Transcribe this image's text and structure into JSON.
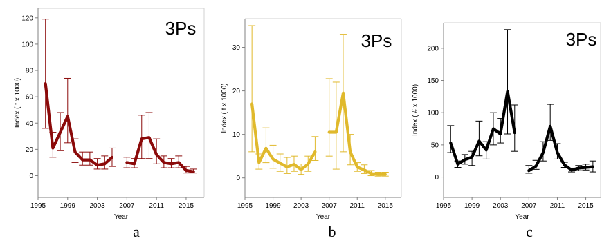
{
  "chart_data": [
    {
      "type": "line",
      "panel_label": "a",
      "region": "3Ps",
      "xlabel": "Year",
      "ylabel": "Index ( t x 1000)",
      "xlim": [
        1995,
        2016.5
      ],
      "ylim": [
        -5,
        122
      ],
      "xticks": [
        1995,
        1999,
        2003,
        2007,
        2011,
        2015
      ],
      "yticks": [
        0,
        20,
        40,
        60,
        80,
        100,
        120
      ],
      "color": "#8b0a0a",
      "grid": false,
      "segments": [
        {
          "x": [
            1996,
            1997,
            1998,
            1999,
            2000,
            2001,
            2002,
            2003,
            2004,
            2005
          ],
          "y": [
            70,
            21,
            33,
            45,
            18,
            12,
            12,
            8,
            9,
            14
          ],
          "lower": [
            36,
            14,
            19,
            25,
            10,
            8,
            8,
            5,
            5,
            7
          ],
          "upper": [
            119,
            33,
            48,
            74,
            28,
            18,
            18,
            13,
            15,
            21
          ]
        },
        {
          "x": [
            2007,
            2008,
            2009,
            2010,
            2011,
            2012,
            2013,
            2014,
            2015,
            2016
          ],
          "y": [
            10,
            9,
            28,
            29,
            16,
            10,
            9,
            10,
            4,
            3
          ],
          "lower": [
            6,
            6,
            13,
            13,
            9,
            6,
            6,
            6,
            2,
            2
          ],
          "upper": [
            14,
            13,
            46,
            48,
            28,
            15,
            13,
            15,
            7,
            5
          ]
        }
      ]
    },
    {
      "type": "line",
      "panel_label": "b",
      "region": "3Ps",
      "xlabel": "Year",
      "ylabel": "Index ( t x 1000)",
      "xlim": [
        1995,
        2016.5
      ],
      "ylim": [
        -1,
        35
      ],
      "xticks": [
        1995,
        1999,
        2003,
        2007,
        2011,
        2015
      ],
      "yticks": [
        0,
        10,
        20,
        30
      ],
      "color": "#e0b92c",
      "grid": false,
      "segments": [
        {
          "x": [
            1996,
            1997,
            1998,
            1999,
            2000,
            2001,
            2002,
            2003,
            2004,
            2005
          ],
          "y": [
            17,
            3.5,
            6.8,
            4.3,
            3.4,
            2.5,
            3.1,
            1.9,
            3.2,
            6
          ],
          "lower": [
            6,
            2,
            3.5,
            2.2,
            1.5,
            1,
            1.5,
            0.8,
            1.5,
            4
          ],
          "upper": [
            35,
            5.5,
            11.5,
            7.5,
            5.5,
            4.7,
            5,
            3.2,
            5,
            9.5
          ]
        },
        {
          "x": [
            2007,
            2008,
            2009,
            2010,
            2011,
            2012,
            2013,
            2014,
            2015
          ],
          "y": [
            10.5,
            10.5,
            19.5,
            6,
            2.5,
            1.8,
            1,
            0.8,
            0.8
          ],
          "lower": [
            5,
            2,
            6,
            3,
            1.5,
            1,
            0.5,
            0.4,
            0.4
          ],
          "upper": [
            22.8,
            22,
            33,
            10,
            3.5,
            3,
            1.7,
            1.3,
            1.3
          ]
        }
      ]
    },
    {
      "type": "line",
      "panel_label": "c",
      "region": "3Ps",
      "xlabel": "Year",
      "ylabel": "Index ( # x 1000)",
      "xlim": [
        1995,
        2016.5
      ],
      "ylim": [
        -8,
        232
      ],
      "xticks": [
        1995,
        1999,
        2003,
        2007,
        2011,
        2015
      ],
      "yticks": [
        0,
        50,
        100,
        150,
        200
      ],
      "color": "#000000",
      "grid": false,
      "segments": [
        {
          "x": [
            1996,
            1997,
            1998,
            1999,
            2000,
            2001,
            2002,
            2003,
            2004,
            2005
          ],
          "y": [
            53,
            20,
            27,
            31,
            56,
            42,
            75,
            67,
            133,
            69
          ],
          "lower": [
            38,
            15,
            20,
            18,
            33,
            28,
            50,
            53,
            67,
            40
          ],
          "upper": [
            80,
            25,
            35,
            40,
            87,
            55,
            100,
            91,
            229,
            112
          ]
        },
        {
          "x": [
            2007,
            2008,
            2009,
            2010,
            2011,
            2012,
            2013,
            2014,
            2015,
            2016
          ],
          "y": [
            10,
            17,
            38,
            79,
            38,
            19,
            11,
            14,
            15,
            16
          ],
          "lower": [
            6,
            12,
            25,
            57,
            28,
            15,
            8,
            10,
            11,
            8
          ],
          "upper": [
            18,
            26,
            55,
            113,
            52,
            23,
            14,
            18,
            20,
            25
          ]
        }
      ]
    }
  ],
  "captions": [
    "a",
    "b",
    "c"
  ]
}
